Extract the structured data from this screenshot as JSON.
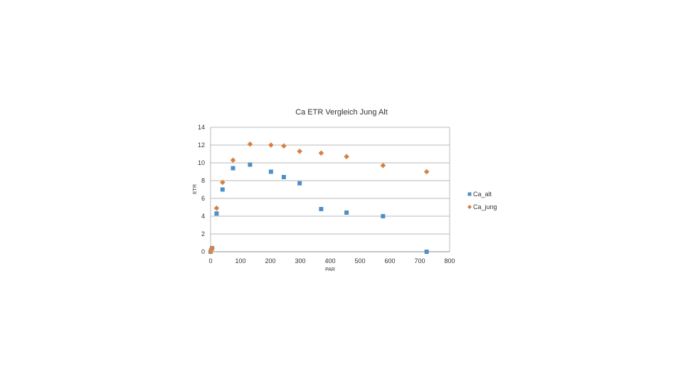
{
  "chart_data": {
    "type": "scatter",
    "title": "Ca ETR Vergleich Jung Alt",
    "xlabel": "PAR",
    "ylabel": "ETR",
    "xlim": [
      0,
      800
    ],
    "ylim": [
      0,
      14
    ],
    "xticks": [
      0,
      100,
      200,
      300,
      400,
      500,
      600,
      700,
      800
    ],
    "yticks": [
      0,
      2,
      4,
      6,
      8,
      10,
      12,
      14
    ],
    "grid": true,
    "legend": "right",
    "series": [
      {
        "name": "Ca_alt",
        "marker": "square",
        "color": "#4f8fc8",
        "points": [
          [
            0,
            0.0
          ],
          [
            2,
            0.2
          ],
          [
            5,
            0.4
          ],
          [
            20,
            4.3
          ],
          [
            40,
            7.0
          ],
          [
            75,
            9.4
          ],
          [
            132,
            9.8
          ],
          [
            202,
            9.0
          ],
          [
            245,
            8.4
          ],
          [
            298,
            7.7
          ],
          [
            370,
            4.8
          ],
          [
            455,
            4.4
          ],
          [
            577,
            4.0
          ],
          [
            723,
            0.0
          ]
        ]
      },
      {
        "name": "Ca_jung",
        "marker": "diamond",
        "color": "#e07b39",
        "points": [
          [
            0,
            0.0
          ],
          [
            2,
            0.2
          ],
          [
            5,
            0.4
          ],
          [
            20,
            4.9
          ],
          [
            40,
            7.8
          ],
          [
            75,
            10.3
          ],
          [
            132,
            12.1
          ],
          [
            202,
            12.0
          ],
          [
            245,
            11.9
          ],
          [
            298,
            11.3
          ],
          [
            370,
            11.1
          ],
          [
            455,
            10.7
          ],
          [
            577,
            9.7
          ],
          [
            723,
            9.0
          ]
        ]
      }
    ]
  }
}
